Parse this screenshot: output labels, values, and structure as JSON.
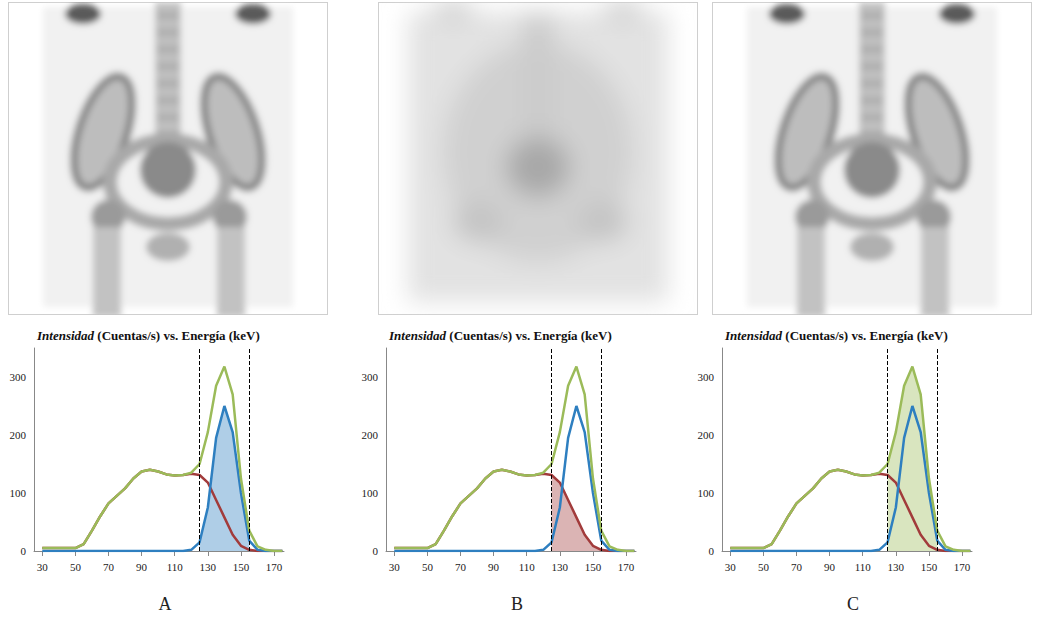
{
  "chart_data": [
    {
      "type": "line",
      "panel_label": "A",
      "title": "Intensidad (Cuentas/s) vs. Energía (keV)",
      "x": [
        30,
        35,
        40,
        45,
        50,
        55,
        60,
        65,
        70,
        75,
        80,
        85,
        90,
        95,
        100,
        105,
        110,
        115,
        120,
        125,
        130,
        135,
        140,
        145,
        150,
        155,
        160,
        165,
        170,
        175
      ],
      "series": [
        {
          "color": "#9bbb59",
          "type": "line",
          "values": [
            5,
            5,
            5,
            5,
            5,
            12,
            35,
            60,
            82,
            95,
            108,
            125,
            137,
            140,
            137,
            132,
            130,
            131,
            135,
            150,
            205,
            285,
            318,
            270,
            125,
            35,
            8,
            2,
            0,
            0
          ]
        },
        {
          "color": "#2e7fc0",
          "type": "area",
          "values": [
            0,
            0,
            0,
            0,
            0,
            0,
            0,
            0,
            0,
            0,
            0,
            0,
            0,
            0,
            0,
            0,
            0,
            0,
            2,
            15,
            75,
            195,
            250,
            205,
            100,
            18,
            2,
            0,
            0,
            0
          ]
        },
        {
          "color": "#a23b3b",
          "type": "line",
          "values": [
            5,
            5,
            5,
            5,
            5,
            12,
            35,
            60,
            82,
            95,
            108,
            125,
            137,
            140,
            137,
            132,
            130,
            131,
            133,
            131,
            118,
            88,
            58,
            28,
            9,
            2,
            0,
            0,
            0,
            0
          ]
        }
      ],
      "xlim": [
        25,
        176
      ],
      "xticks": [
        30,
        50,
        70,
        90,
        110,
        130,
        150,
        170
      ],
      "ylim": [
        0,
        350
      ],
      "yticks": [
        0,
        100,
        200,
        300
      ],
      "energy_window": [
        125,
        155
      ],
      "grid": false
    },
    {
      "type": "line",
      "panel_label": "B",
      "title": "Intensidad (Cuentas/s) vs. Energía (keV)",
      "x": [
        30,
        35,
        40,
        45,
        50,
        55,
        60,
        65,
        70,
        75,
        80,
        85,
        90,
        95,
        100,
        105,
        110,
        115,
        120,
        125,
        130,
        135,
        140,
        145,
        150,
        155,
        160,
        165,
        170,
        175
      ],
      "series": [
        {
          "color": "#9bbb59",
          "type": "line",
          "values": [
            5,
            5,
            5,
            5,
            5,
            12,
            35,
            60,
            82,
            95,
            108,
            125,
            137,
            140,
            137,
            132,
            130,
            131,
            135,
            150,
            205,
            285,
            318,
            270,
            125,
            35,
            8,
            2,
            0,
            0
          ]
        },
        {
          "color": "#2e7fc0",
          "type": "line",
          "values": [
            0,
            0,
            0,
            0,
            0,
            0,
            0,
            0,
            0,
            0,
            0,
            0,
            0,
            0,
            0,
            0,
            0,
            0,
            2,
            15,
            75,
            195,
            250,
            205,
            100,
            18,
            2,
            0,
            0,
            0
          ]
        },
        {
          "color": "#a23b3b",
          "type": "area",
          "values": [
            5,
            5,
            5,
            5,
            5,
            12,
            35,
            60,
            82,
            95,
            108,
            125,
            137,
            140,
            137,
            132,
            130,
            131,
            133,
            131,
            118,
            88,
            58,
            28,
            9,
            2,
            0,
            0,
            0,
            0
          ]
        }
      ],
      "xlim": [
        25,
        176
      ],
      "xticks": [
        30,
        50,
        70,
        90,
        110,
        130,
        150,
        170
      ],
      "ylim": [
        0,
        350
      ],
      "yticks": [
        0,
        100,
        200,
        300
      ],
      "energy_window": [
        125,
        155
      ],
      "grid": false
    },
    {
      "type": "line",
      "panel_label": "C",
      "title": "Intensidad (Cuentas/s) vs. Energía (keV)",
      "x": [
        30,
        35,
        40,
        45,
        50,
        55,
        60,
        65,
        70,
        75,
        80,
        85,
        90,
        95,
        100,
        105,
        110,
        115,
        120,
        125,
        130,
        135,
        140,
        145,
        150,
        155,
        160,
        165,
        170,
        175
      ],
      "series": [
        {
          "color": "#9bbb59",
          "type": "area",
          "values": [
            5,
            5,
            5,
            5,
            5,
            12,
            35,
            60,
            82,
            95,
            108,
            125,
            137,
            140,
            137,
            132,
            130,
            131,
            135,
            150,
            205,
            285,
            318,
            270,
            125,
            35,
            8,
            2,
            0,
            0
          ]
        },
        {
          "color": "#2e7fc0",
          "type": "line",
          "values": [
            0,
            0,
            0,
            0,
            0,
            0,
            0,
            0,
            0,
            0,
            0,
            0,
            0,
            0,
            0,
            0,
            0,
            0,
            2,
            15,
            75,
            195,
            250,
            205,
            100,
            18,
            2,
            0,
            0,
            0
          ]
        },
        {
          "color": "#a23b3b",
          "type": "line",
          "values": [
            5,
            5,
            5,
            5,
            5,
            12,
            35,
            60,
            82,
            95,
            108,
            125,
            137,
            140,
            137,
            132,
            130,
            131,
            133,
            131,
            118,
            88,
            58,
            28,
            9,
            2,
            0,
            0,
            0,
            0
          ]
        }
      ],
      "xlim": [
        25,
        176
      ],
      "xticks": [
        30,
        50,
        70,
        90,
        110,
        130,
        150,
        170
      ],
      "ylim": [
        0,
        350
      ],
      "yticks": [
        0,
        100,
        200,
        300
      ],
      "energy_window": [
        125,
        155
      ],
      "grid": false
    }
  ]
}
